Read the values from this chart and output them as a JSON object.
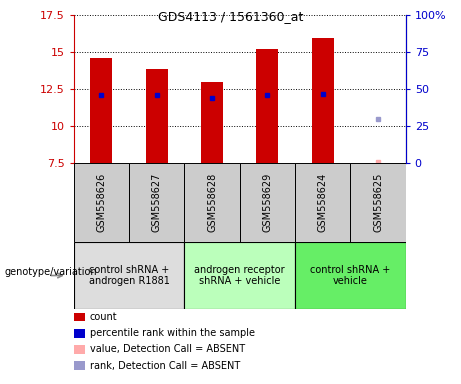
{
  "title": "GDS4113 / 1561360_at",
  "samples": [
    "GSM558626",
    "GSM558627",
    "GSM558628",
    "GSM558629",
    "GSM558624",
    "GSM558625"
  ],
  "bar_values": [
    14.6,
    13.9,
    13.0,
    15.2,
    16.0,
    null
  ],
  "bar_bottoms": [
    7.5,
    7.5,
    7.5,
    7.5,
    7.5,
    null
  ],
  "blue_dot_values": [
    12.1,
    12.1,
    11.9,
    12.1,
    12.2,
    null
  ],
  "blue_dot_absent_value": 10.5,
  "blue_dot_absent_idx": 5,
  "pink_dot_value": 7.55,
  "pink_dot_sample_idx": 5,
  "ylim_left": [
    7.5,
    17.5
  ],
  "ylim_right": [
    0,
    100
  ],
  "yticks_left": [
    7.5,
    10.0,
    12.5,
    15.0,
    17.5
  ],
  "yticks_right": [
    0,
    25,
    50,
    75,
    100
  ],
  "ytick_labels_left": [
    "7.5",
    "10",
    "12.5",
    "15",
    "17.5"
  ],
  "ytick_labels_right": [
    "0",
    "25",
    "50",
    "75",
    "100%"
  ],
  "bar_color": "#cc0000",
  "blue_dot_color": "#0000cc",
  "blue_dot_absent_color": "#9999cc",
  "pink_dot_color": "#ffaaaa",
  "group_configs": [
    {
      "indices": [
        0,
        1
      ],
      "label": "control shRNA +\nandrogen R1881",
      "color": "#dddddd"
    },
    {
      "indices": [
        2,
        3
      ],
      "label": "androgen receptor\nshRNA + vehicle",
      "color": "#bbffbb"
    },
    {
      "indices": [
        4,
        5
      ],
      "label": "control shRNA +\nvehicle",
      "color": "#66ee66"
    }
  ],
  "legend_entries": [
    {
      "label": "count",
      "color": "#cc0000"
    },
    {
      "label": "percentile rank within the sample",
      "color": "#0000cc"
    },
    {
      "label": "value, Detection Call = ABSENT",
      "color": "#ffaaaa"
    },
    {
      "label": "rank, Detection Call = ABSENT",
      "color": "#9999cc"
    }
  ],
  "genotype_label": "genotype/variation",
  "bar_width": 0.4,
  "plot_bg": "#ffffff",
  "sample_box_color": "#cccccc",
  "tick_label_fontsize": 8,
  "sample_label_fontsize": 7,
  "group_label_fontsize": 7,
  "legend_fontsize": 7
}
